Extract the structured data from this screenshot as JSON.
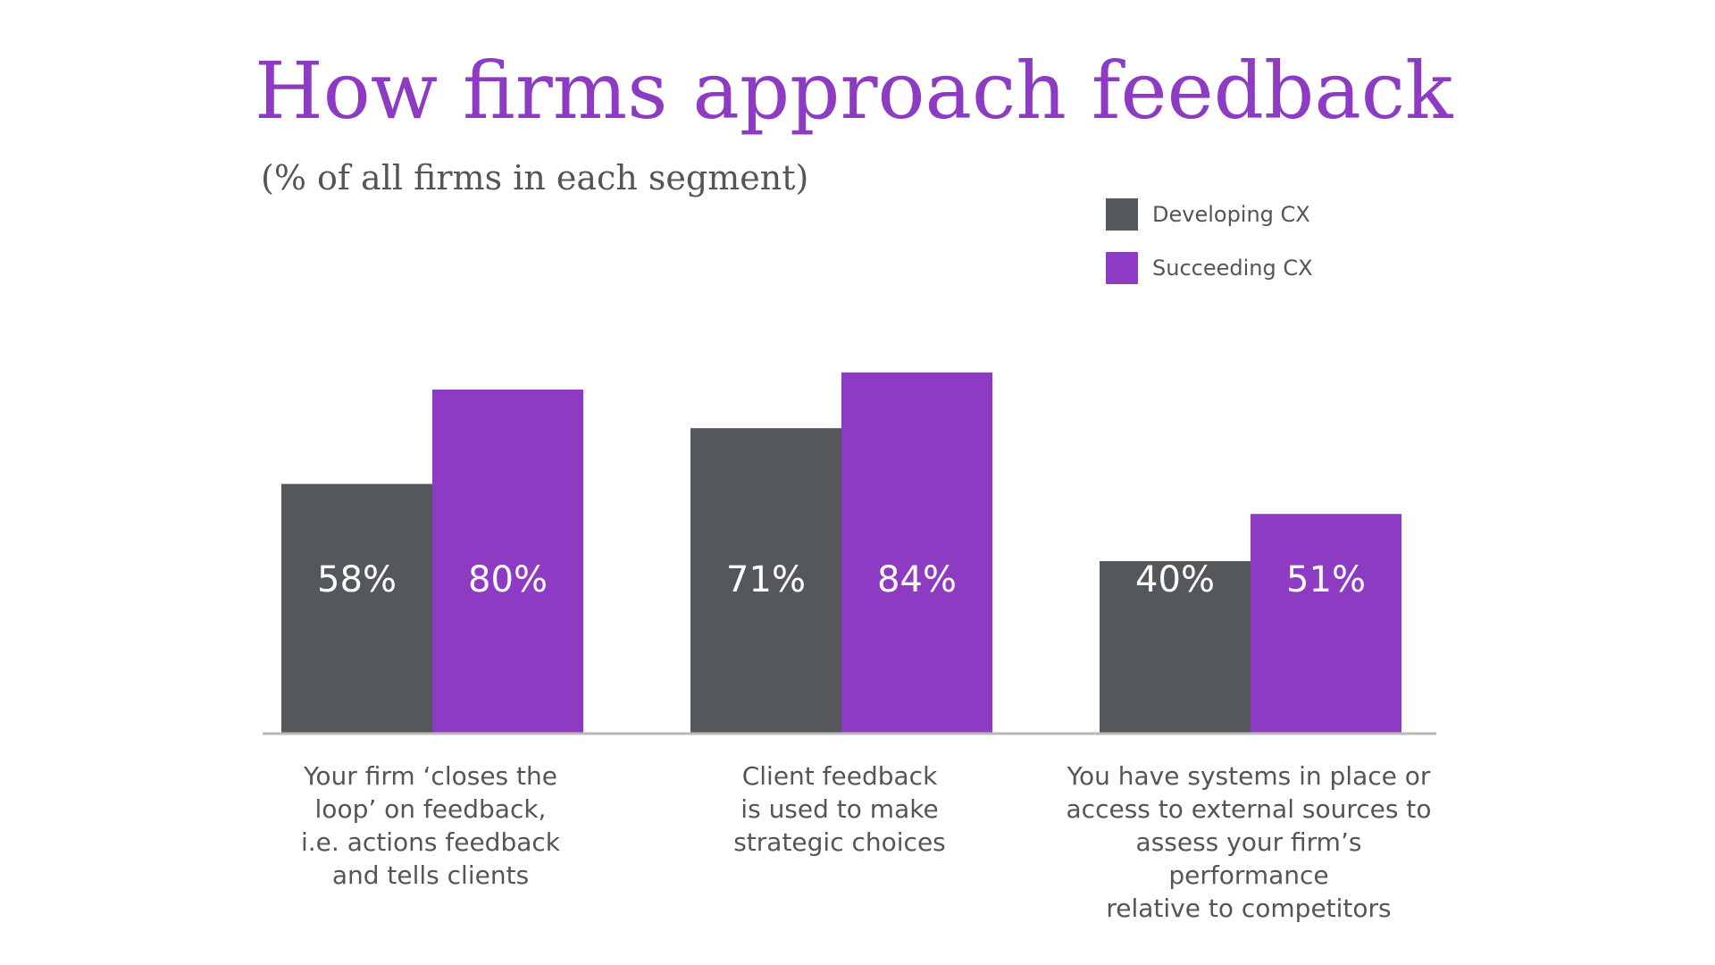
{
  "chart_data": {
    "type": "bar",
    "title": "How firms approach feedback",
    "subtitle": "(% of all firms in each segment)",
    "categories": [
      "Your firm ‘closes the\nloop’ on feedback,\ni.e. actions feedback\nand tells clients",
      "Client feedback\nis used to make\nstrategic choices",
      "You have systems in place or\naccess to external sources to\nassess your firm’s performance\nrelative to competitors"
    ],
    "series": [
      {
        "name": "Developing CX",
        "color": "#55585b",
        "values": [
          58,
          71,
          40
        ],
        "labels": [
          "58%",
          "71%",
          "40%"
        ]
      },
      {
        "name": "Succeeding CX",
        "color": "#8e3bc4",
        "values": [
          80,
          84,
          51
        ],
        "labels": [
          "80%",
          "84%",
          "51%"
        ]
      }
    ],
    "ylim": [
      0,
      100
    ],
    "grid": false,
    "legend_position": "top-right",
    "xlabel": "",
    "ylabel": ""
  }
}
